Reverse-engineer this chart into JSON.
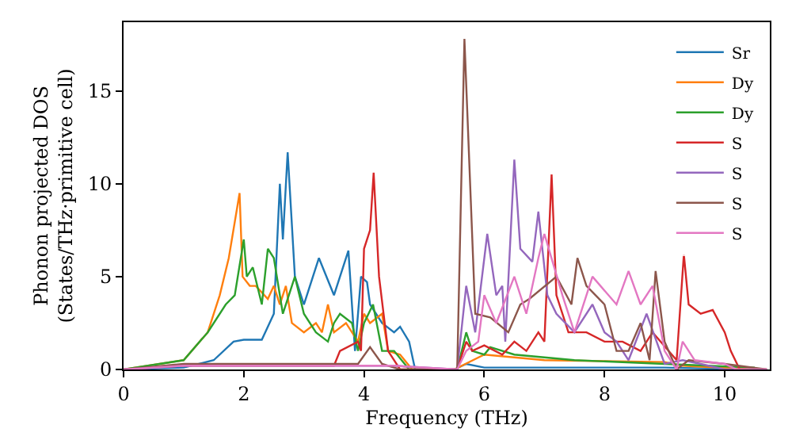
{
  "chart_data": {
    "type": "line",
    "xlabel": "Frequency (THz)",
    "ylabel": "Phonon projected DOS\n(States/THz·primitive cell)",
    "xlim": [
      0,
      10.75
    ],
    "ylim": [
      0,
      18.7
    ],
    "xticks": [
      0,
      2,
      4,
      6,
      8,
      10
    ],
    "yticks": [
      0,
      5,
      10,
      15
    ],
    "legend": "top right",
    "marker": "none",
    "line_style": "solid",
    "series": [
      {
        "name": "Sr",
        "color": "#1f77b4",
        "x": [
          0,
          1.0,
          1.5,
          1.83,
          2.0,
          2.3,
          2.5,
          2.6,
          2.65,
          2.73,
          2.85,
          3.0,
          3.25,
          3.5,
          3.74,
          3.85,
          3.95,
          4.05,
          4.1,
          4.3,
          4.5,
          4.6,
          4.75,
          4.85,
          5.5,
          5.7,
          6.0,
          9.0,
          10.5
        ],
        "values": [
          0,
          0.1,
          0.5,
          1.5,
          1.6,
          1.6,
          3,
          10,
          7,
          11.7,
          5,
          3.5,
          6,
          4,
          6.4,
          1,
          5,
          4.7,
          3.5,
          2.5,
          2,
          2.3,
          1.5,
          0,
          0,
          0.3,
          0.1,
          0.1,
          0
        ]
      },
      {
        "name": "Dy",
        "color": "#ff7f0e",
        "x": [
          0,
          1.0,
          1.4,
          1.6,
          1.75,
          1.93,
          1.98,
          2.1,
          2.2,
          2.4,
          2.5,
          2.6,
          2.7,
          2.8,
          3.0,
          3.2,
          3.3,
          3.4,
          3.5,
          3.7,
          3.9,
          4.0,
          4.1,
          4.3,
          4.4,
          4.6,
          4.8,
          5.5,
          6.0,
          7.0,
          9.0,
          9.3,
          10.5
        ],
        "values": [
          0,
          0.5,
          2,
          4,
          6,
          9.5,
          5,
          4.5,
          4.5,
          3.8,
          4.5,
          3.5,
          4.5,
          2.5,
          2,
          2.5,
          2,
          3.5,
          2,
          2.5,
          1.5,
          3,
          2.5,
          3,
          1,
          0.8,
          0,
          0,
          0.8,
          0.5,
          0.4,
          0.2,
          0
        ]
      },
      {
        "name": "Dy",
        "color": "#2ca02c",
        "x": [
          0,
          1.0,
          1.4,
          1.7,
          1.85,
          2.0,
          2.05,
          2.15,
          2.3,
          2.4,
          2.5,
          2.65,
          2.75,
          2.85,
          3.0,
          3.2,
          3.4,
          3.5,
          3.6,
          3.8,
          3.9,
          4.0,
          4.15,
          4.3,
          4.5,
          4.75,
          5.55,
          5.7,
          5.8,
          6.0,
          6.1,
          6.5,
          7.5,
          9.0,
          10.5
        ],
        "values": [
          0,
          0.5,
          2,
          3.5,
          4,
          7,
          5,
          5.5,
          3.5,
          6.5,
          6,
          3,
          4,
          5,
          3,
          2,
          1.5,
          2.5,
          3,
          2.5,
          1,
          2.5,
          3.5,
          1,
          1,
          0,
          0,
          2,
          1,
          0.8,
          1.2,
          0.8,
          0.5,
          0.3,
          0.1
        ]
      },
      {
        "name": "S",
        "color": "#d62728",
        "x": [
          0,
          1.0,
          3.5,
          3.6,
          3.9,
          3.95,
          4.0,
          4.1,
          4.16,
          4.25,
          4.4,
          4.6,
          5.55,
          5.7,
          5.8,
          6.0,
          6.3,
          6.5,
          6.7,
          6.9,
          7.0,
          7.12,
          7.2,
          7.4,
          7.7,
          8.0,
          8.3,
          8.6,
          8.8,
          9.2,
          9.32,
          9.4,
          9.6,
          9.8,
          10.0,
          10.1,
          10.25,
          10.7
        ],
        "values": [
          0,
          0.2,
          0.2,
          1,
          1.5,
          1,
          6.5,
          7.5,
          10.6,
          5,
          1,
          0,
          0,
          1.5,
          1,
          1.3,
          0.8,
          1.5,
          1,
          2,
          1.5,
          10.5,
          4,
          2,
          2,
          1.5,
          1.5,
          1,
          2,
          0.5,
          6.2,
          3.5,
          3,
          3.2,
          2,
          1,
          0,
          0
        ]
      },
      {
        "name": "S",
        "color": "#9467bd",
        "x": [
          0,
          1.0,
          4.5,
          5.55,
          5.7,
          5.85,
          6.05,
          6.2,
          6.3,
          6.35,
          6.5,
          6.6,
          6.8,
          6.9,
          7.05,
          7.2,
          7.5,
          7.8,
          8.0,
          8.2,
          8.4,
          8.7,
          9.0,
          9.3,
          9.6,
          10.0,
          10.7
        ],
        "values": [
          0,
          0.2,
          0.2,
          0,
          4.5,
          2,
          7.3,
          4,
          4.5,
          1.5,
          11.3,
          6.5,
          5.8,
          8.5,
          4,
          3,
          2,
          3.5,
          2,
          1.5,
          0.5,
          3,
          0.3,
          0.5,
          0.3,
          0,
          0
        ]
      },
      {
        "name": "S",
        "color": "#8c564b",
        "x": [
          0,
          1.0,
          3.9,
          4.1,
          4.3,
          4.6,
          5.55,
          5.67,
          5.85,
          6.1,
          6.4,
          6.6,
          6.75,
          7.2,
          7.45,
          7.55,
          7.7,
          8.0,
          8.2,
          8.4,
          8.6,
          8.75,
          8.85,
          9.0,
          9.2,
          9.4,
          10.0,
          10.7
        ],
        "values": [
          0,
          0.3,
          0.3,
          1.2,
          0.3,
          0,
          0,
          17.8,
          3,
          2.8,
          2,
          3.5,
          3.8,
          5,
          3.5,
          6,
          4.5,
          3.5,
          1,
          1,
          2.5,
          0.5,
          5.3,
          1.5,
          0,
          0.5,
          0.3,
          0
        ]
      },
      {
        "name": "S",
        "color": "#e377c2",
        "x": [
          0,
          1.0,
          4.5,
          5.55,
          5.7,
          5.9,
          6.0,
          6.2,
          6.5,
          6.7,
          6.9,
          7.0,
          7.3,
          7.5,
          7.8,
          8.2,
          8.4,
          8.6,
          8.8,
          9.0,
          9.2,
          9.3,
          9.5,
          10.0,
          10.2,
          10.7
        ],
        "values": [
          0,
          0.2,
          0.2,
          0,
          1,
          1.5,
          4,
          2.5,
          5,
          3,
          6,
          7.3,
          4,
          2,
          5,
          3.5,
          5.3,
          3.5,
          4.5,
          1,
          0,
          1.5,
          0.5,
          0.3,
          0,
          0
        ]
      }
    ]
  }
}
